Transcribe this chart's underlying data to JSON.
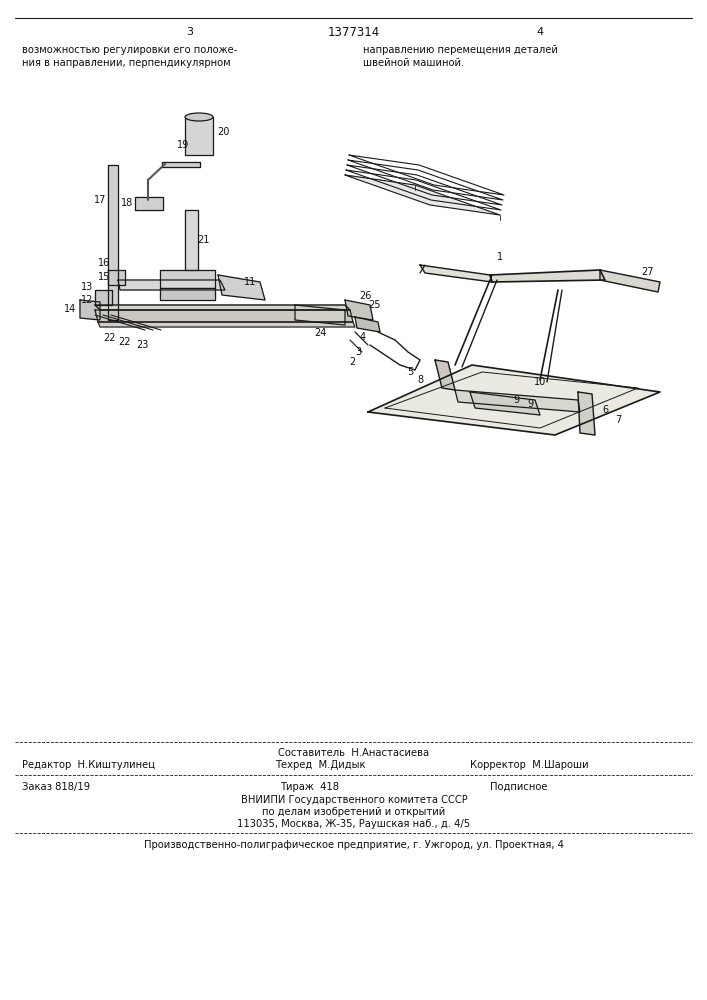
{
  "page_width": 7.07,
  "page_height": 10.0,
  "bg_color": "#ffffff",
  "line_color": "#1a1a1a",
  "text_color": "#111111",
  "header": {
    "page_left": "3",
    "patent_center": "1377314",
    "page_right": "4",
    "text_left_col1": "возможностью регулировки его положе-",
    "text_left_col2": "ния в направлении, перпендикулярном",
    "text_right_col1": "направлению перемещения деталей",
    "text_right_col2": "швейной машиной."
  },
  "footer": {
    "author_line": "Составитель  Н.Анастасиева",
    "editor": "Редактор  Н.Киштулинец",
    "techred": "Техред  М.Дидык",
    "corrector": "Корректор  М.Шароши",
    "order": "Заказ 818/19",
    "tirage": "Тираж  418",
    "podpisnoe": "Подписное",
    "vniiipi_line1": "ВНИИПИ Государственного комитета СССР",
    "vniiipi_line2": "по делам изобретений и открытий",
    "vniiipi_line3": "113035, Москва, Ж-35, Раушская наб., д. 4/5",
    "last_line": "Производственно-полиграфическое предприятие, г. Ужгород, ул. Проектная, 4"
  }
}
